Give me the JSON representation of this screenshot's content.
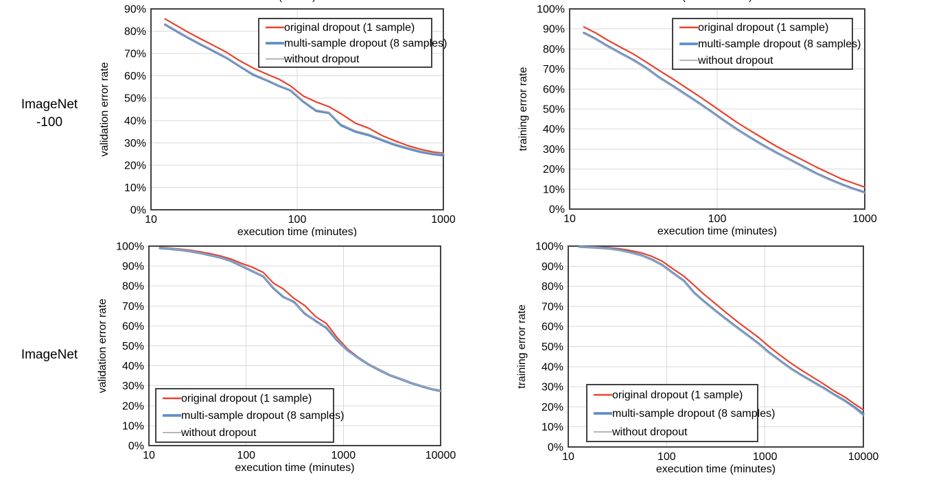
{
  "page": {
    "background": "#ffffff"
  },
  "rows": [
    {
      "label": "ImageNet\n-100"
    },
    {
      "label": "ImageNet"
    }
  ],
  "colors": {
    "original_dropout": "#e8432d",
    "multi_sample_dropout": "#5f8dc9",
    "without_dropout": "#ababab",
    "gridline": "#d9d9d9",
    "plot_border": "#404040",
    "legend_border": "#404040",
    "text": "#000000"
  },
  "legend_labels": [
    "original dropout (1 sample)",
    "multi-sample dropout (8 samples)",
    "without dropout"
  ],
  "chart_data": [
    {
      "type": "line",
      "name": "imagenet-100-validation",
      "title_fragment": "( )",
      "xlabel": "execution time (minutes)",
      "ylabel": "validation error rate",
      "xscale": "log",
      "xlim": [
        10,
        1000
      ],
      "xticks": [
        10,
        100,
        1000
      ],
      "ylim": [
        0,
        90
      ],
      "yticks": [
        0,
        10,
        20,
        30,
        40,
        50,
        60,
        70,
        80,
        90
      ],
      "ytick_suffix": "%",
      "grid": true,
      "legend_position": "top-right",
      "x": [
        12.5,
        15,
        18,
        22,
        27,
        33,
        40,
        50,
        62,
        75,
        90,
        110,
        135,
        165,
        200,
        250,
        310,
        380,
        470,
        580,
        700,
        850,
        1000
      ],
      "series": [
        {
          "name": "original dropout (1 sample)",
          "color": "#e8432d",
          "width": 2.2,
          "y": [
            85.5,
            82.5,
            79.5,
            76.5,
            73.5,
            70.5,
            67,
            63.5,
            60.8,
            58.5,
            55.5,
            51,
            48.3,
            46.2,
            43,
            38.8,
            36.5,
            33.3,
            30.8,
            28.6,
            27.1,
            25.9,
            25.4
          ]
        },
        {
          "name": "multi-sample dropout (8 samples)",
          "color": "#5f8dc9",
          "width": 3.4,
          "y": [
            83,
            80,
            77,
            74,
            71,
            68,
            64.5,
            60.5,
            58,
            55.5,
            53.5,
            48.5,
            44.3,
            43.4,
            37.8,
            35,
            33.4,
            31.2,
            29,
            27.3,
            25.9,
            24.9,
            24.4
          ]
        },
        {
          "name": "without dropout",
          "color": "#ababab",
          "width": 1.3,
          "y": [
            83.4,
            80.4,
            77.4,
            74.4,
            71.4,
            68.3,
            64.8,
            61,
            58.3,
            55.8,
            53.8,
            48.9,
            44.8,
            43.8,
            38.4,
            35.5,
            33.9,
            31.7,
            29.5,
            27.8,
            26.4,
            25.4,
            25.2
          ]
        }
      ]
    },
    {
      "type": "line",
      "name": "imagenet-100-training",
      "title_fragment": "(  )",
      "xlabel": "execution time (minutes)",
      "ylabel": "training error rate",
      "xscale": "log",
      "xlim": [
        10,
        1000
      ],
      "xticks": [
        10,
        100,
        1000
      ],
      "ylim": [
        0,
        100
      ],
      "yticks": [
        0,
        10,
        20,
        30,
        40,
        50,
        60,
        70,
        80,
        90,
        100
      ],
      "ytick_suffix": "%",
      "grid": true,
      "legend_position": "top-right",
      "x": [
        12.5,
        15,
        18,
        22,
        27,
        33,
        40,
        50,
        62,
        75,
        90,
        110,
        135,
        165,
        200,
        250,
        310,
        380,
        470,
        580,
        700,
        850,
        1000
      ],
      "series": [
        {
          "name": "original dropout (1 sample)",
          "color": "#e8432d",
          "width": 2.2,
          "y": [
            91,
            88,
            84.5,
            81,
            77.5,
            73.5,
            69.5,
            65,
            60.5,
            56.5,
            52.5,
            48,
            43.5,
            39.5,
            35.8,
            31.5,
            27.8,
            24.5,
            21,
            17.8,
            15,
            12.8,
            11
          ]
        },
        {
          "name": "multi-sample dropout (8 samples)",
          "color": "#5f8dc9",
          "width": 3.4,
          "y": [
            88,
            85,
            81.5,
            78,
            74.5,
            70.5,
            66,
            61.5,
            57,
            53,
            49,
            44.5,
            40,
            36,
            32.3,
            28.3,
            24.8,
            21.3,
            17.8,
            14.8,
            12.3,
            10,
            8.3
          ]
        },
        {
          "name": "without dropout",
          "color": "#ababab",
          "width": 1.3,
          "y": [
            87.7,
            84.7,
            81.2,
            77.7,
            74.2,
            70.2,
            65.7,
            61.2,
            56.7,
            52.7,
            48.7,
            44.2,
            39.7,
            35.7,
            32,
            28,
            24.5,
            21,
            17.5,
            14.5,
            12,
            9.7,
            7.9
          ]
        }
      ]
    },
    {
      "type": "line",
      "name": "imagenet-validation",
      "title_fragment": "",
      "xlabel": "execution time (minutes)",
      "ylabel": "validation error rate",
      "xscale": "log",
      "xlim": [
        10,
        10000
      ],
      "xticks": [
        10,
        100,
        1000,
        10000
      ],
      "ylim": [
        0,
        100
      ],
      "yticks": [
        0,
        10,
        20,
        30,
        40,
        50,
        60,
        70,
        80,
        90,
        100
      ],
      "ytick_suffix": "%",
      "grid": true,
      "legend_position": "bottom-left",
      "x": [
        13,
        16,
        20,
        26,
        33,
        42,
        55,
        70,
        90,
        115,
        150,
        190,
        240,
        310,
        400,
        520,
        670,
        860,
        1100,
        1400,
        1800,
        2300,
        3000,
        3900,
        5000,
        6500,
        8200,
        10000
      ],
      "series": [
        {
          "name": "original dropout (1 sample)",
          "color": "#e8432d",
          "width": 2.2,
          "y": [
            99.3,
            99,
            98.6,
            98,
            97.2,
            96.3,
            95,
            93.5,
            91.3,
            89.5,
            86.8,
            81.5,
            78.6,
            73.8,
            70.2,
            64.6,
            61.2,
            54.2,
            48.5,
            44.5,
            41,
            38.3,
            35.5,
            33.5,
            31.5,
            29.8,
            28.4,
            27.7
          ]
        },
        {
          "name": "multi-sample dropout (8 samples)",
          "color": "#5f8dc9",
          "width": 3.4,
          "y": [
            99,
            98.7,
            98.2,
            97.5,
            96.6,
            95.5,
            94.2,
            92.5,
            90,
            87.5,
            84.8,
            79,
            74.6,
            72,
            66.2,
            62.4,
            59,
            52.8,
            47.8,
            44.2,
            40.8,
            38,
            35.3,
            33.3,
            31.3,
            29.6,
            28.2,
            27.4
          ]
        },
        {
          "name": "without dropout",
          "color": "#ababab",
          "width": 1.3,
          "y": [
            99.1,
            98.8,
            98.3,
            97.6,
            96.7,
            95.6,
            94.3,
            92.6,
            90.2,
            87.7,
            85,
            79.4,
            75.2,
            71.4,
            66.8,
            61.8,
            59.6,
            53.4,
            47.6,
            44,
            40.9,
            38.1,
            35.4,
            33.4,
            31.4,
            29.7,
            28.3,
            27.5
          ]
        }
      ]
    },
    {
      "type": "line",
      "name": "imagenet-training",
      "title_fragment": "",
      "xlabel": "execution time (minutes)",
      "ylabel": "training error rate",
      "xscale": "log",
      "xlim": [
        10,
        10000
      ],
      "xticks": [
        10,
        100,
        1000,
        10000
      ],
      "ylim": [
        0,
        100
      ],
      "yticks": [
        0,
        10,
        20,
        30,
        40,
        50,
        60,
        70,
        80,
        90,
        100
      ],
      "ytick_suffix": "%",
      "grid": true,
      "legend_position": "bottom-left",
      "x": [
        13,
        16,
        20,
        26,
        33,
        42,
        55,
        70,
        90,
        115,
        150,
        190,
        240,
        310,
        400,
        520,
        670,
        860,
        1100,
        1400,
        1800,
        2300,
        3000,
        3900,
        5000,
        6500,
        8200,
        10000
      ],
      "series": [
        {
          "name": "original dropout (1 sample)",
          "color": "#e8432d",
          "width": 2.2,
          "y": [
            99.8,
            99.7,
            99.5,
            99.2,
            98.7,
            97.9,
            96.7,
            95,
            92.5,
            88.8,
            85,
            80.5,
            76,
            71.5,
            67,
            62.5,
            58.5,
            54.5,
            50,
            46,
            42,
            38.5,
            35,
            31.5,
            28,
            24.8,
            21.3,
            18.5
          ]
        },
        {
          "name": "multi-sample dropout (8 samples)",
          "color": "#5f8dc9",
          "width": 3.4,
          "y": [
            99.7,
            99.5,
            99.2,
            98.8,
            98.1,
            97,
            95.5,
            93.4,
            90.6,
            86.8,
            82.7,
            76.8,
            72.5,
            68,
            63.8,
            59.5,
            55.5,
            51.5,
            47,
            43.2,
            39.3,
            36,
            32.7,
            29.5,
            26.2,
            23,
            19.7,
            16.5
          ]
        },
        {
          "name": "without dropout",
          "color": "#ababab",
          "width": 1.3,
          "y": [
            99.7,
            99.5,
            99.2,
            98.8,
            98,
            96.9,
            95.3,
            93.2,
            90.4,
            86.6,
            82.4,
            76.5,
            72.2,
            67.7,
            63.5,
            59.2,
            55.2,
            51.2,
            46.7,
            42.9,
            39,
            35.7,
            32.4,
            29.1,
            25.8,
            22.5,
            19,
            15.4
          ]
        }
      ]
    }
  ]
}
